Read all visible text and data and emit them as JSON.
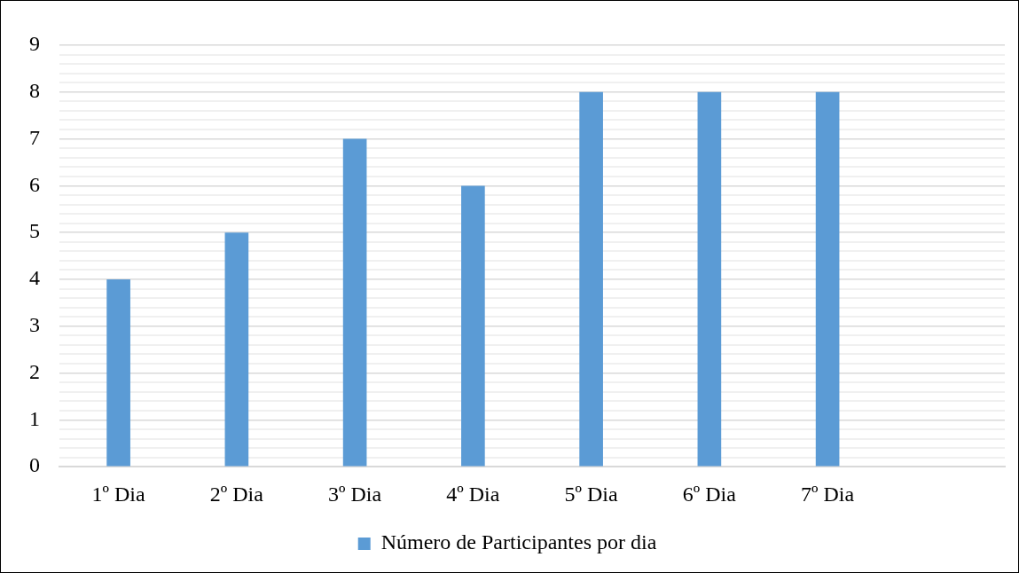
{
  "chart_data": {
    "type": "bar",
    "categories": [
      "1º Dia",
      "2º Dia",
      "3º Dia",
      "4º Dia",
      "5º Dia",
      "6º Dia",
      "7º Dia",
      null
    ],
    "series": [
      {
        "name": "Número de Participantes por dia",
        "color": "#5b9bd5",
        "values": [
          4,
          5,
          7,
          6,
          8,
          8,
          8,
          null
        ]
      }
    ],
    "ylim": [
      0,
      9
    ],
    "yticks": [
      0,
      {
        "value": 0.2,
        "label": null
      },
      {
        "value": 0.4,
        "label": null
      },
      {
        "value": 0.6,
        "label": null
      },
      {
        "value": 0.8,
        "label": null
      },
      1,
      {
        "value": 1.2,
        "label": null
      },
      {
        "value": 1.4,
        "label": null
      },
      {
        "value": 1.6,
        "label": null
      },
      {
        "value": 1.8,
        "label": null
      },
      2,
      {
        "value": 2.2,
        "label": null
      },
      {
        "value": 2.4,
        "label": null
      },
      {
        "value": 2.6,
        "label": null
      },
      {
        "value": 2.8,
        "label": null
      },
      3,
      {
        "value": 3.2,
        "label": null
      },
      {
        "value": 3.4,
        "label": null
      },
      {
        "value": 3.6,
        "label": null
      },
      {
        "value": 3.8,
        "label": null
      },
      4,
      {
        "value": 4.2,
        "label": null
      },
      {
        "value": 4.4,
        "label": null
      },
      {
        "value": 4.6,
        "label": null
      },
      {
        "value": 4.8,
        "label": null
      },
      5,
      {
        "value": 5.2,
        "label": null
      },
      {
        "value": 5.4,
        "label": null
      },
      {
        "value": 5.6,
        "label": null
      },
      {
        "value": 5.8,
        "label": null
      },
      6,
      {
        "value": 6.2,
        "label": null
      },
      {
        "value": 6.4,
        "label": null
      },
      {
        "value": 6.6,
        "label": null
      },
      {
        "value": 6.8,
        "label": null
      },
      7,
      {
        "value": 7.2,
        "label": null
      },
      {
        "value": 7.4,
        "label": null
      },
      {
        "value": 7.6,
        "label": null
      },
      {
        "value": 7.8,
        "label": null
      },
      8,
      {
        "value": 8.2,
        "label": null
      },
      {
        "value": 8.4,
        "label": null
      },
      {
        "value": 8.6,
        "label": null
      },
      {
        "value": 8.8,
        "label": null
      },
      9
    ],
    "grid": "y",
    "legend": "bottom"
  }
}
